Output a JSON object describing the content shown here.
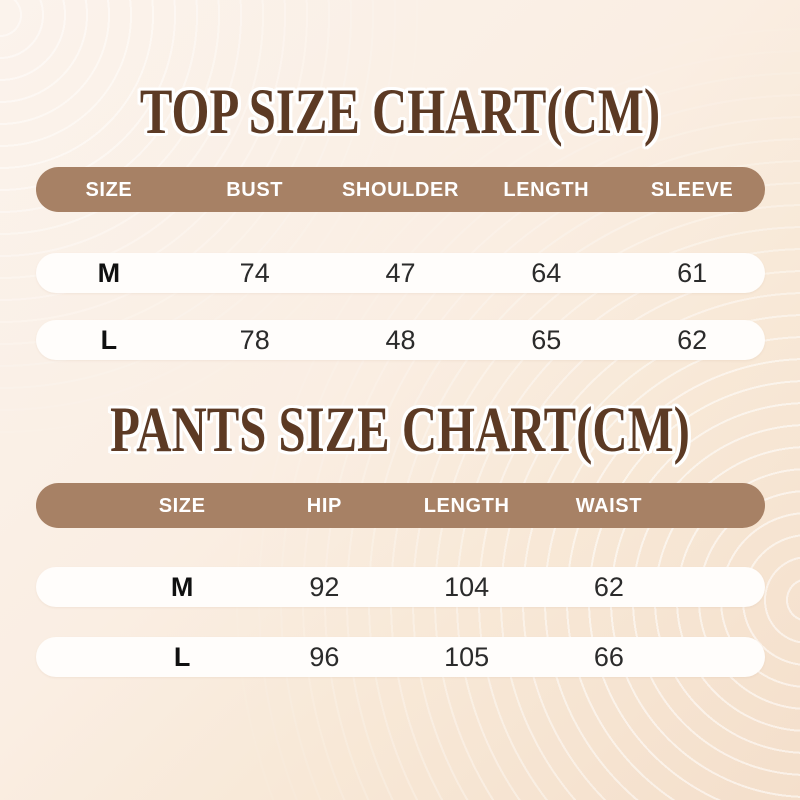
{
  "chart_data": [
    {
      "type": "table",
      "title": "TOP SIZE CHART(CM)",
      "columns": [
        "SIZE",
        "BUST",
        "SHOULDER",
        "LENGTH",
        "SLEEVE"
      ],
      "rows": [
        [
          "M",
          "74",
          "47",
          "64",
          "61"
        ],
        [
          "L",
          "78",
          "48",
          "65",
          "62"
        ]
      ]
    },
    {
      "type": "table",
      "title": "PANTS SIZE CHART(CM)",
      "columns": [
        "SIZE",
        "HIP",
        "LENGTH",
        "WAIST"
      ],
      "rows": [
        [
          "M",
          "92",
          "104",
          "62"
        ],
        [
          "L",
          "96",
          "105",
          "66"
        ]
      ]
    }
  ],
  "colors": {
    "title_text": "#5c3a24",
    "title_outline": "#ffffff",
    "header_bg": "#a78165",
    "header_text": "#ffffff",
    "row_bg": "#fffdfb",
    "value_text": "#2b2b2b",
    "background_start": "#fbf3ec",
    "background_end": "#f4dfcb"
  }
}
